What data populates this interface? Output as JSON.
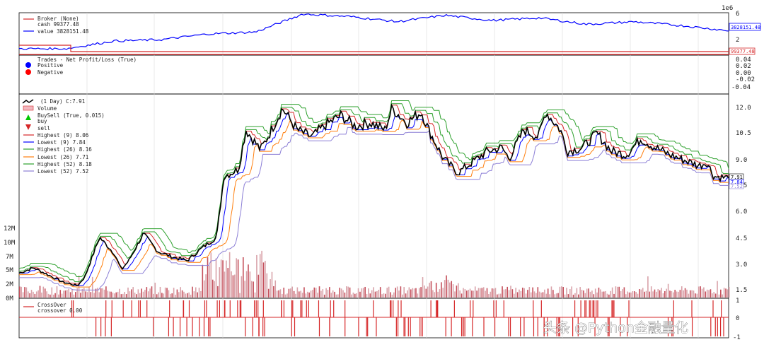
{
  "chart_data": [
    {
      "type": "line",
      "panel": "broker",
      "exponent_label": "1e6",
      "yticks": [
        6,
        4,
        2
      ],
      "legend": [
        {
          "label": "Broker (None)",
          "color": "#d62728"
        },
        {
          "label": "cash 99377.48",
          "color": "#d62728"
        },
        {
          "label": "value 3828151.48",
          "color": "#0000ff"
        }
      ],
      "value_badge": "3828151.48",
      "cash_badge": "99377.48",
      "series": [
        {
          "name": "value",
          "color": "#0000ff",
          "values": [
            1,
            1,
            2.2,
            2.4,
            3.3,
            3.6,
            6.4,
            6.0,
            5.2,
            6.2,
            5.4,
            5.8,
            4.8,
            5.2,
            4.6,
            3.8
          ]
        },
        {
          "name": "cash",
          "color": "#d62728",
          "values": [
            0.1,
            0.1,
            0.1,
            0.1,
            0.1,
            0.1,
            0.1,
            0.1,
            0.1,
            0.1,
            0.1,
            0.1,
            0.1,
            0.1,
            0.1,
            0.1
          ]
        }
      ]
    },
    {
      "type": "scatter",
      "panel": "trades",
      "yticks": [
        "0.04",
        "0.02",
        "0.00",
        "-0.02",
        "-0.04"
      ],
      "legend": [
        {
          "label": "Trades - Net Profit/Loss (True)",
          "color": ""
        },
        {
          "label": "Positive",
          "color": "#0000ff"
        },
        {
          "label": "Negative",
          "color": "#ff0000"
        }
      ]
    },
    {
      "type": "line",
      "panel": "price",
      "yticks": [
        "12.0",
        "10.5",
        "9.0",
        "7.5",
        "6.0",
        "4.5",
        "3.0",
        "1.5"
      ],
      "ylim": [
        1.2,
        12.6
      ],
      "volume_ticks": [
        "12M",
        "10M",
        "7M",
        "5M",
        "2M",
        "0M"
      ],
      "legend": [
        {
          "label": "(1 Day) C:7.91",
          "color": "#000000"
        },
        {
          "label": "Volume",
          "color": "#d62728"
        },
        {
          "label": "BuySell (True, 0.015)",
          "color": ""
        },
        {
          "label": "buy",
          "color": "#00c800"
        },
        {
          "label": "sell",
          "color": "#d62728"
        },
        {
          "label": "Highest (9) 8.06",
          "color": "#d62728"
        },
        {
          "label": "Lowest (9) 7.84",
          "color": "#0000ff"
        },
        {
          "label": "Highest (26) 8.16",
          "color": "#2ca02c"
        },
        {
          "label": "Lowest (26) 7.71",
          "color": "#ff7f0e"
        },
        {
          "label": "Highest (52) 8.18",
          "color": "#2ca02c"
        },
        {
          "label": "Lowest (52) 7.52",
          "color": "#8c7fd6"
        }
      ],
      "badges": [
        "7.91",
        "7.84",
        "7.52"
      ],
      "close_path": [
        [
          0,
          2.6
        ],
        [
          2,
          2.9
        ],
        [
          4,
          2.5
        ],
        [
          6,
          2.1
        ],
        [
          8,
          1.9
        ],
        [
          9,
          2.4
        ],
        [
          11,
          4.6
        ],
        [
          13,
          3.7
        ],
        [
          14,
          2.8
        ],
        [
          15,
          3.3
        ],
        [
          17,
          4.8
        ],
        [
          19,
          3.8
        ],
        [
          21,
          3.5
        ],
        [
          23,
          3.3
        ],
        [
          25,
          4.0
        ],
        [
          27,
          4.6
        ],
        [
          28,
          8.0
        ],
        [
          30,
          8.4
        ],
        [
          31,
          10.6
        ],
        [
          33,
          9.5
        ],
        [
          34,
          10.2
        ],
        [
          36,
          11.8
        ],
        [
          38,
          10.6
        ],
        [
          40,
          10.2
        ],
        [
          42,
          10.9
        ],
        [
          44,
          11.4
        ],
        [
          46,
          10.8
        ],
        [
          48,
          11.0
        ],
        [
          50,
          10.6
        ],
        [
          51,
          11.8
        ],
        [
          53,
          11.0
        ],
        [
          55,
          11.6
        ],
        [
          56,
          10.6
        ],
        [
          58,
          9.0
        ],
        [
          60,
          8.2
        ],
        [
          62,
          8.8
        ],
        [
          64,
          9.4
        ],
        [
          66,
          9.6
        ],
        [
          67,
          9.0
        ],
        [
          69,
          10.6
        ],
        [
          71,
          10.2
        ],
        [
          72,
          11.6
        ],
        [
          74,
          10.6
        ],
        [
          75,
          9.4
        ],
        [
          77,
          9.6
        ],
        [
          79,
          10.4
        ],
        [
          81,
          9.4
        ],
        [
          83,
          9.2
        ],
        [
          85,
          10.1
        ],
        [
          87,
          9.6
        ],
        [
          89,
          9.2
        ],
        [
          91,
          8.9
        ],
        [
          93,
          8.6
        ],
        [
          94,
          8.8
        ],
        [
          95,
          8.0
        ],
        [
          97,
          7.91
        ]
      ],
      "x_max": 97
    },
    {
      "type": "line",
      "panel": "crossover",
      "yticks": [
        "1",
        "0",
        "-1"
      ],
      "legend": [
        {
          "label": "CrossOver",
          "color": "#d62728"
        },
        {
          "label": "crossover 0.00",
          "color": "#d62728"
        }
      ]
    }
  ],
  "watermark": "头条 @Python金融量化"
}
